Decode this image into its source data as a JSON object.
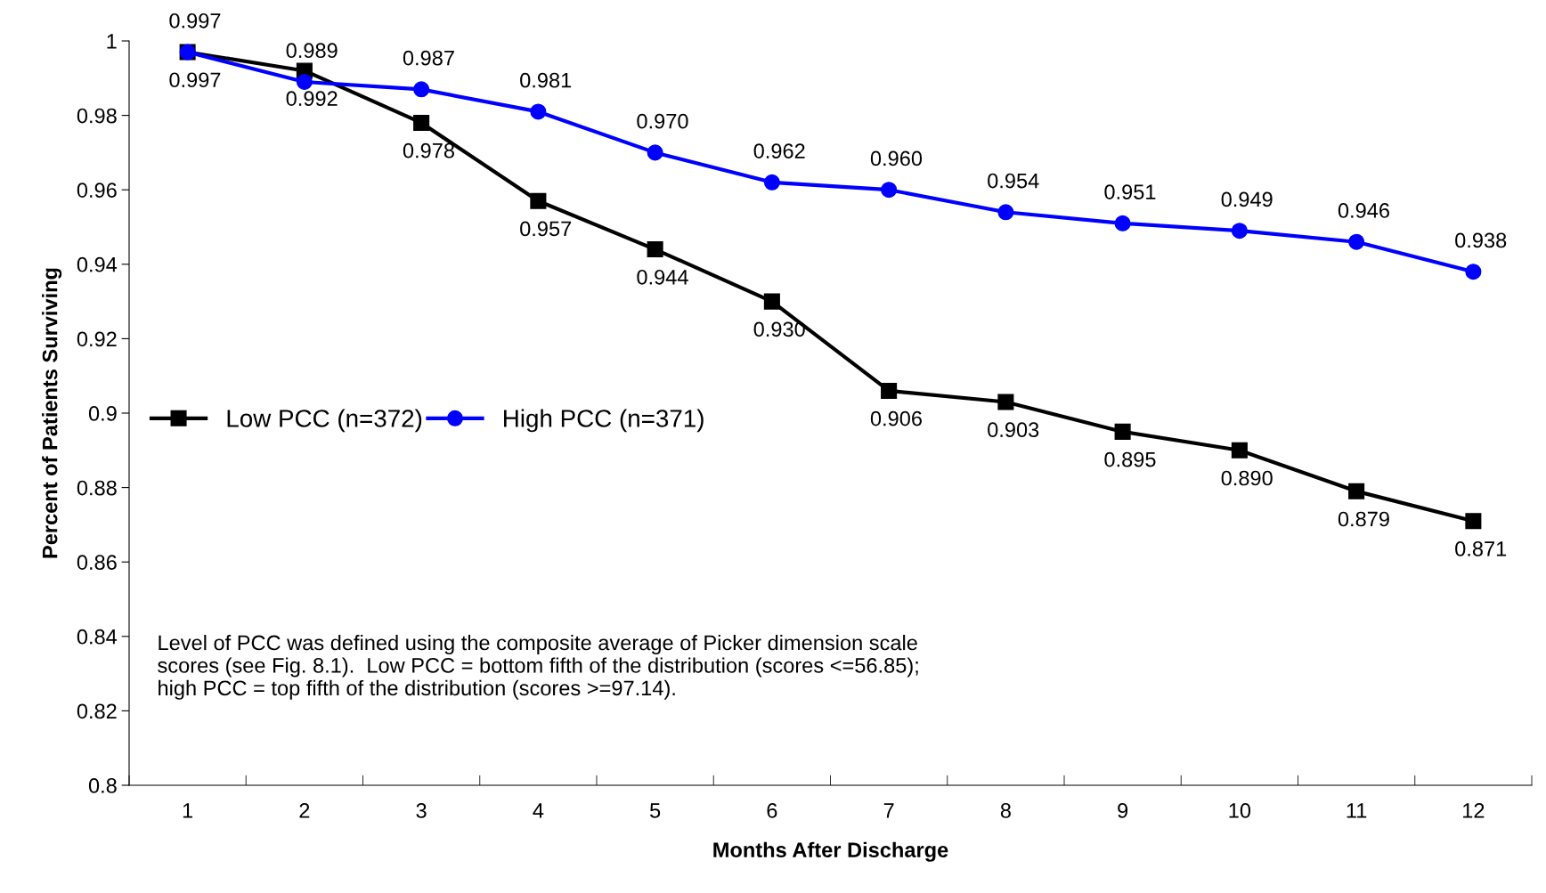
{
  "chart_data": {
    "type": "line",
    "xlabel": "Months After Discharge",
    "ylabel": "Percent of Patients Surviving",
    "categories": [
      "1",
      "2",
      "3",
      "4",
      "5",
      "6",
      "7",
      "8",
      "9",
      "10",
      "11",
      "12"
    ],
    "series": [
      {
        "name": "Low PCC (n=372)",
        "color": "#000000",
        "marker": "square",
        "values": [
          0.997,
          0.992,
          0.978,
          0.957,
          0.944,
          0.93,
          0.906,
          0.903,
          0.895,
          0.89,
          0.879,
          0.871
        ],
        "value_labels": [
          "0.997",
          "0.992",
          "0.978",
          "0.957",
          "0.944",
          "0.930",
          "0.906",
          "0.903",
          "0.895",
          "0.890",
          "0.879",
          "0.871"
        ]
      },
      {
        "name": "High PCC (n=371)",
        "color": "#0000ff",
        "marker": "circle",
        "values": [
          0.997,
          0.989,
          0.987,
          0.981,
          0.97,
          0.962,
          0.96,
          0.954,
          0.951,
          0.949,
          0.946,
          0.938
        ],
        "value_labels": [
          "0.997",
          "0.989",
          "0.987",
          "0.981",
          "0.970",
          "0.962",
          "0.960",
          "0.954",
          "0.951",
          "0.949",
          "0.946",
          "0.938"
        ]
      }
    ],
    "ylim": [
      0.8,
      1
    ],
    "yticks": [
      0.8,
      0.82,
      0.84,
      0.86,
      0.88,
      0.9,
      0.92,
      0.94,
      0.96,
      0.98,
      1
    ],
    "grid": false,
    "legend": "left",
    "line_style": "solid",
    "annotations": [
      "Level of PCC was defined using the composite average of Picker dimension scale\nscores (see Fig. 8.1).  Low PCC = bottom fifth of the distribution (scores <=56.85);\nhigh PCC = top fifth of the distribution (scores >=97.14)."
    ]
  }
}
